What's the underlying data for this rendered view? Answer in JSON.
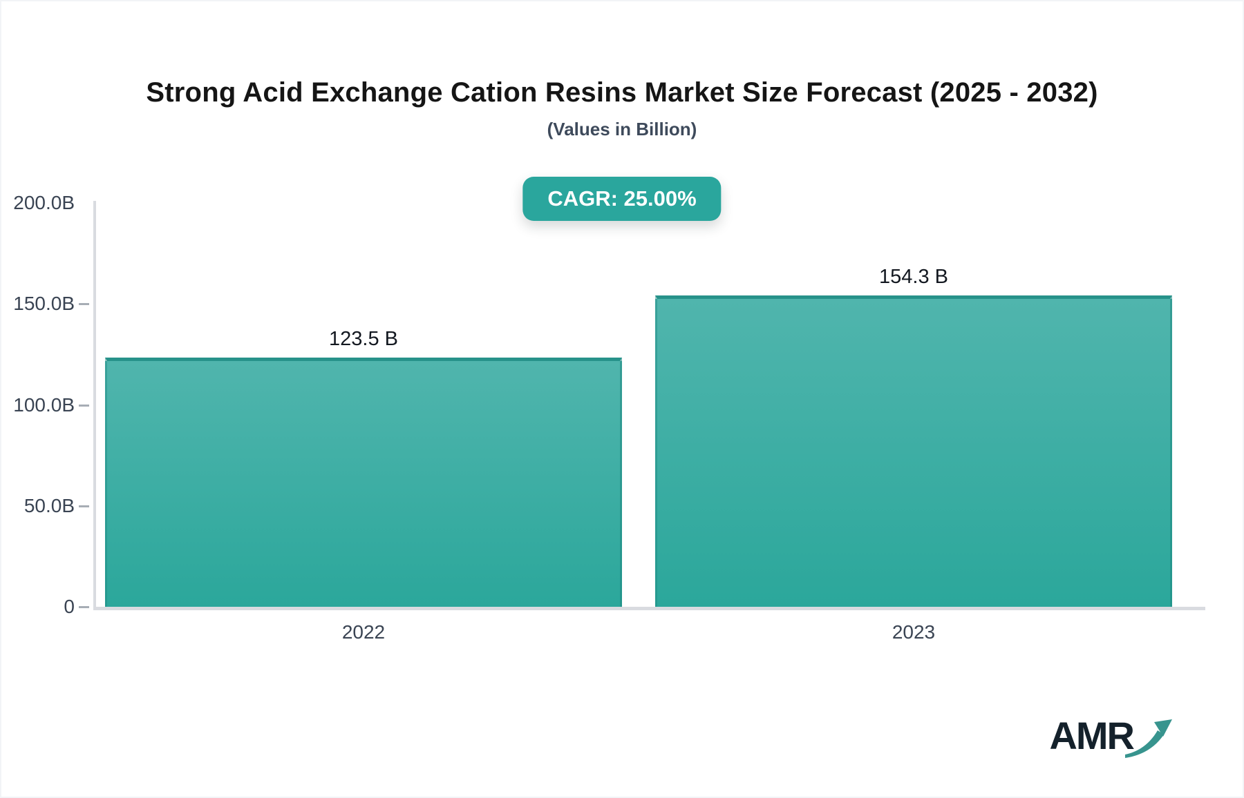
{
  "header": {
    "title": "Strong Acid Exchange Cation Resins Market Size Forecast (2025 - 2032)",
    "subtitle": "(Values in Billion)",
    "cagr_badge": "CAGR: 25.00%"
  },
  "chart_data": {
    "type": "bar",
    "categories": [
      "2022",
      "2023"
    ],
    "values": [
      123.5,
      154.3
    ],
    "value_labels": [
      "123.5 B",
      "154.3 B"
    ],
    "title": "Strong Acid Exchange Cation Resins Market Size Forecast (2025 - 2032)",
    "subtitle": "(Values in Billion)",
    "xlabel": "",
    "ylabel": "",
    "ylim": [
      0,
      200
    ],
    "yticks": [
      {
        "label": "200.0B",
        "value": 200
      },
      {
        "label": "150.0B",
        "value": 150
      },
      {
        "label": "100.0B",
        "value": 100
      },
      {
        "label": "50.0B",
        "value": 50
      },
      {
        "label": "0",
        "value": 0
      }
    ],
    "grid": false,
    "legend": "none",
    "annotation": "CAGR: 25.00%"
  },
  "colors": {
    "accent": "#2aa69d",
    "bar_gradient_top": "#50b5ad",
    "bar_gradient_bottom": "#2ba79b",
    "bar_border": "#27928a",
    "axis_line": "#d9dbe0",
    "label_text": "#3a4453",
    "logo_text": "#14212b",
    "logo_arrow": "#37948e"
  },
  "logo": {
    "text": "AMR",
    "icon": "growth-arrow-icon"
  }
}
